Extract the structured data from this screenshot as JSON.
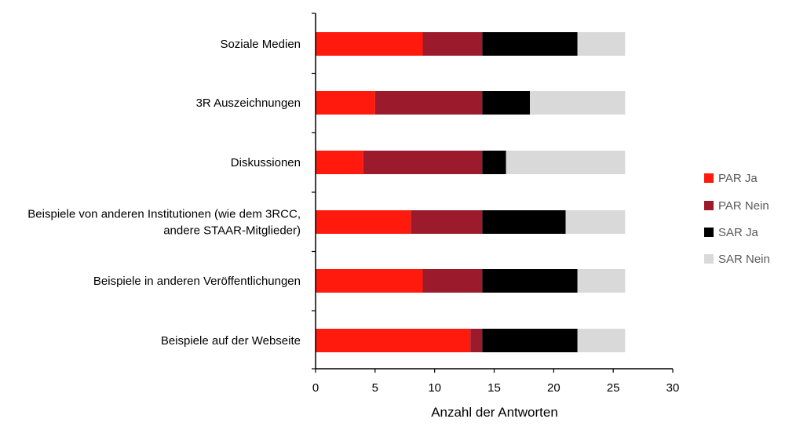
{
  "chart_data": {
    "type": "bar",
    "orientation": "horizontal",
    "stacked": true,
    "categories": [
      "Soziale Medien",
      "3R Auszeichnungen",
      "Diskussionen",
      "Beispiele von anderen Institutionen (wie dem 3RCC, andere STAAR-Mitglieder)",
      "Beispiele in anderen Veröffentlichungen",
      "Beispiele auf der Webseite"
    ],
    "category_lines": [
      [
        "Soziale Medien"
      ],
      [
        "3R Auszeichnungen"
      ],
      [
        "Diskussionen"
      ],
      [
        "Beispiele von anderen Institutionen (wie dem 3RCC,",
        "andere STAAR-Mitglieder)"
      ],
      [
        "Beispiele in anderen Veröffentlichungen"
      ],
      [
        "Beispiele auf der Webseite"
      ]
    ],
    "series": [
      {
        "name": "PAR Ja",
        "color": "#ff1a0d",
        "values": [
          9,
          5,
          4,
          8,
          9,
          13
        ]
      },
      {
        "name": "PAR Nein",
        "color": "#9b1b2c",
        "values": [
          5,
          9,
          10,
          6,
          5,
          1
        ]
      },
      {
        "name": "SAR Ja",
        "color": "#000000",
        "values": [
          8,
          4,
          2,
          7,
          8,
          8
        ]
      },
      {
        "name": "SAR Nein",
        "color": "#d9d9d9",
        "values": [
          4,
          8,
          10,
          5,
          4,
          4
        ]
      }
    ],
    "xlabel": "Anzahl der Antworten",
    "ylabel": "",
    "xlim": [
      0,
      30
    ],
    "xticks": [
      0,
      5,
      10,
      15,
      20,
      25,
      30
    ],
    "grid": false,
    "legend_position": "right"
  }
}
